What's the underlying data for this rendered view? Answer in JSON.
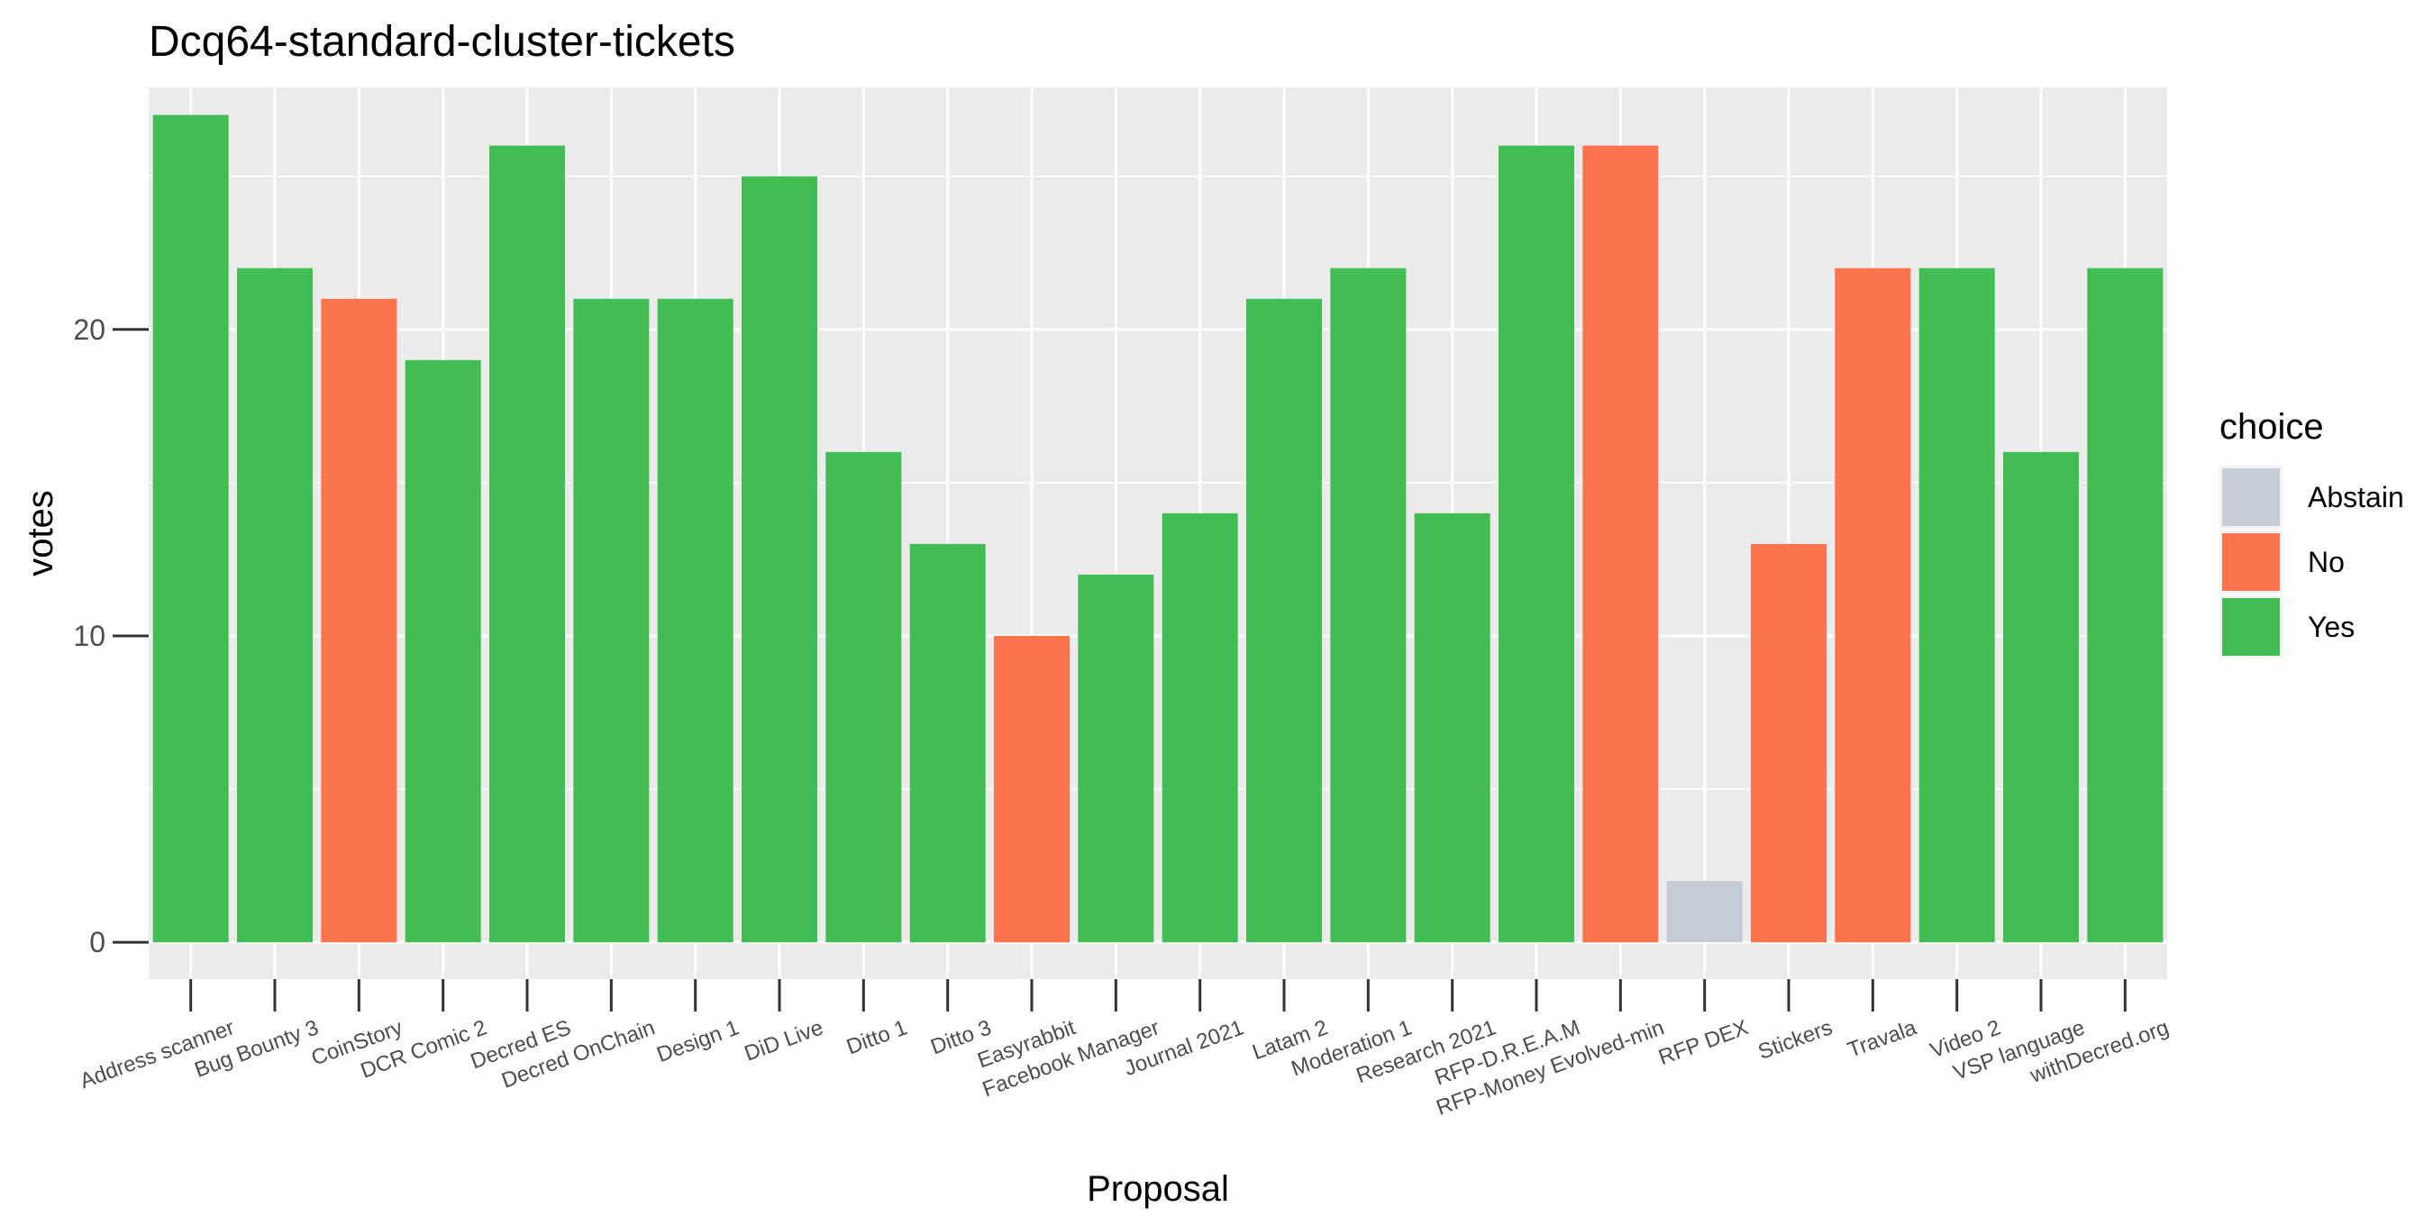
{
  "chart_data": {
    "type": "bar",
    "title": "Dcq64-standard-cluster-tickets",
    "xlabel": "Proposal",
    "ylabel": "votes",
    "ylim": [
      -1.2,
      27.9
    ],
    "yticks": [
      0,
      10,
      20
    ],
    "grid": true,
    "legend": {
      "title": "choice",
      "position": "right",
      "entries": [
        {
          "name": "Abstain",
          "color": "#c5ccd5"
        },
        {
          "name": "No",
          "color": "#fc744e"
        },
        {
          "name": "Yes",
          "color": "#41bd53"
        }
      ]
    },
    "categories": [
      "Address scanner",
      "Bug Bounty 3",
      "CoinStory",
      "DCR Comic 2",
      "Decred ES",
      "Decred OnChain",
      "Design 1",
      "DiD Live",
      "Ditto 1",
      "Ditto 3",
      "Easyrabbit",
      "Facebook Manager",
      "Journal 2021",
      "Latam 2",
      "Moderation 1",
      "Research 2021",
      "RFP-D.R.E.A.M",
      "RFP-Money Evolved-min",
      "RFP DEX",
      "Stickers",
      "Travala",
      "Video 2",
      "VSP language",
      "withDecred.org"
    ],
    "values": [
      27,
      22,
      21,
      19,
      26,
      21,
      21,
      25,
      16,
      13,
      10,
      12,
      14,
      21,
      22,
      14,
      26,
      26,
      2,
      13,
      22,
      22,
      16,
      22
    ],
    "choices": [
      "Yes",
      "Yes",
      "No",
      "Yes",
      "Yes",
      "Yes",
      "Yes",
      "Yes",
      "Yes",
      "Yes",
      "No",
      "Yes",
      "Yes",
      "Yes",
      "Yes",
      "Yes",
      "Yes",
      "No",
      "Abstain",
      "No",
      "No",
      "Yes",
      "Yes",
      "Yes"
    ]
  }
}
